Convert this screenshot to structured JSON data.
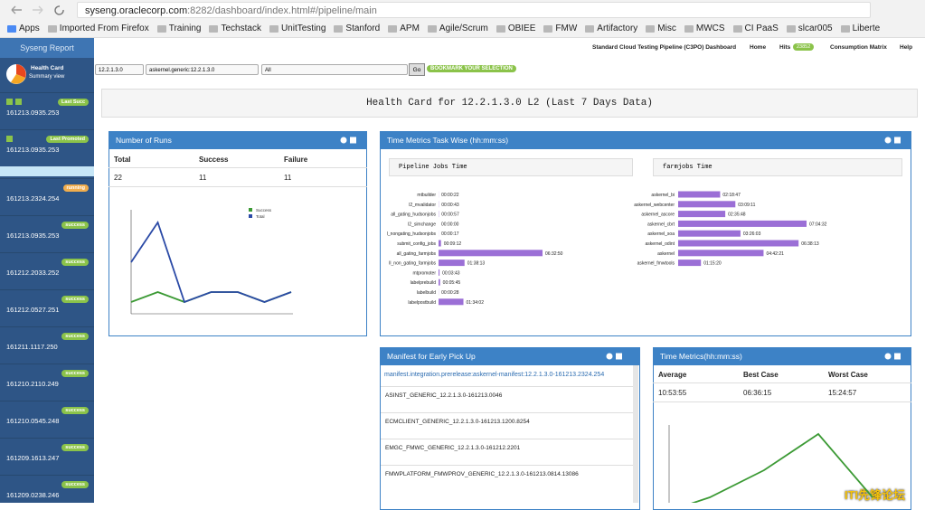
{
  "browser": {
    "url_host": "syseng.oraclecorp.com",
    "url_rest": ":8282/dashboard/index.html#/pipeline/main",
    "bookmarks": [
      "Apps",
      "Imported From Firefox",
      "Training",
      "Techstack",
      "UnitTesting",
      "Stanford",
      "APM",
      "Agile/Scrum",
      "OBIEE",
      "FMW",
      "Artifactory",
      "Misc",
      "MWCS",
      "CI PaaS",
      "slcar005",
      "Liberte"
    ]
  },
  "sidebar": {
    "title": "Syseng Report",
    "health_card": "Health Card",
    "summary_view": "Summary view",
    "builds": [
      {
        "status": "Last Succ",
        "id": "161213.0935.253",
        "color": "#8bc34a"
      },
      {
        "status": "Last Promoted",
        "id": "161213.0935.253",
        "color": "#8bc34a"
      },
      {
        "status": "running",
        "id": "161213.2324.254",
        "color": "#f0ad4e"
      },
      {
        "status": "success",
        "id": "161213.0935.253",
        "color": "#8bc34a"
      },
      {
        "status": "success",
        "id": "161212.2033.252",
        "color": "#8bc34a"
      },
      {
        "status": "success",
        "id": "161212.0527.251",
        "color": "#8bc34a"
      },
      {
        "status": "success",
        "id": "161211.1117.250",
        "color": "#8bc34a"
      },
      {
        "status": "success",
        "id": "161210.2110.249",
        "color": "#8bc34a"
      },
      {
        "status": "success",
        "id": "161210.0545.248",
        "color": "#8bc34a"
      },
      {
        "status": "success",
        "id": "161209.1613.247",
        "color": "#8bc34a"
      },
      {
        "status": "success",
        "id": "161209.0238.246",
        "color": "#8bc34a"
      }
    ]
  },
  "nav": {
    "title": "Standard Cloud Testing Pipeline (C3PO) Dashboard",
    "home": "Home",
    "hits": "Hits",
    "hits_count": "23852",
    "consumption": "Consumption Matrix",
    "help": "Help"
  },
  "filters": {
    "release": "12.2.1.3.0",
    "component": "askernel.generic:12.2.1.3.0",
    "scope": "All",
    "go": "Go",
    "bookmark": "BOOKMARK YOUR SELECTION"
  },
  "banner": "Health Card for 12.2.1.3.0 L2 (Last 7 Days Data)",
  "runs": {
    "title": "Number of Runs",
    "headers": [
      "Total",
      "Success",
      "Failure"
    ],
    "row": [
      22,
      11,
      11
    ],
    "chart": {
      "type": "line",
      "ylim": [
        0,
        10
      ],
      "series": [
        {
          "name": "Success",
          "color": "#3c9a35",
          "values": [
            1,
            2,
            1,
            2,
            2,
            1,
            2
          ]
        },
        {
          "name": "Total",
          "color": "#2b4aa6",
          "values": [
            5,
            9,
            1,
            2,
            2,
            1,
            2
          ]
        }
      ]
    }
  },
  "task": {
    "title": "Time Metrics Task Wise (hh:mm:ss)",
    "pipeline": {
      "type": "bar",
      "title": "Pipeline Jobs Time",
      "color": "#9b6fd6",
      "categories": [
        "mtbuilder",
        "l2_mvalidator",
        "all_gating_hudsonjobs",
        "l2_simchange",
        "l_nongating_hudsonjobs",
        "submit_config_jobs",
        "all_gating_farmjobs",
        "ll_non_gating_farmjobs",
        "mtpromoter",
        "labelprebuild",
        "labelbuild",
        "labelpostbuild"
      ],
      "values": [
        22,
        43,
        57,
        0,
        17,
        552,
        23570,
        5893,
        223,
        345,
        28,
        5642
      ],
      "value_labels": [
        "00:00:22",
        "00:00:43",
        "00:00:57",
        "00:00:00",
        "00:00:17",
        "00:09:12",
        "06:32:50",
        "01:38:13",
        "00:03:43",
        "00:05:45",
        "00:00:28",
        "01:34:02"
      ]
    },
    "farm": {
      "type": "bar",
      "title": "farmjobs Time",
      "color": "#9b6fd6",
      "categories": [
        "askernel_bi",
        "askernel_webcenter",
        "askernel_ascore",
        "askernel_cbrt",
        "askernel_soa",
        "askernel_odint",
        "askernel",
        "askernel_fmwtools"
      ],
      "values": [
        8327,
        11351,
        9348,
        25472,
        12363,
        23893,
        16941,
        4520
      ],
      "value_labels": [
        "02:18:47",
        "03:09:11",
        "02:35:48",
        "07:04:32",
        "03:26:03",
        "06:38:13",
        "04:42:21",
        "01:15:20"
      ]
    }
  },
  "manifest": {
    "title": "Manifest for Early Pick Up",
    "link": "manifest.integration.prerelease:askernel-manifest:12.2.1.3.0-161213.2324.254",
    "items": [
      "ASINST_GENERIC_12.2.1.3.0-161213.0046",
      "ECMCLIENT_GENERIC_12.2.1.3.0-161213.1200.8254",
      "EMGC_FMWC_GENERIC_12.2.1.3.0-161212.2201",
      "FMWPLATFORM_FMWPROV_GENERIC_12.2.1.3.0-161213.0814.13086"
    ]
  },
  "metrics": {
    "title": "Time Metrics(hh:mm:ss)",
    "headers": [
      "Average",
      "Best Case",
      "Worst Case"
    ],
    "row": [
      "10:53:55",
      "06:36:15",
      "15:24:57"
    ],
    "chart": {
      "type": "line",
      "ylim": [
        0,
        10
      ],
      "series": [
        {
          "color": "#3c9a35",
          "values": [
            0,
            2,
            5,
            9,
            2
          ]
        }
      ]
    }
  },
  "watermark": "ITI先锋论坛"
}
